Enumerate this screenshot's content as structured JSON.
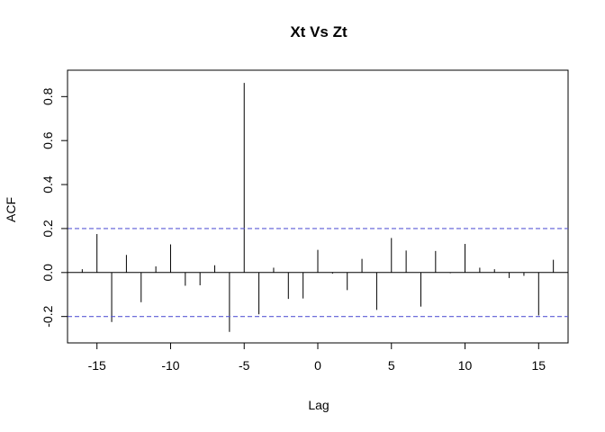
{
  "chart_data": {
    "type": "bar",
    "title": "Xt Vs Zt",
    "xlabel": "Lag",
    "ylabel": "ACF",
    "xlim": [
      -17,
      17
    ],
    "ylim": [
      -0.32,
      0.92
    ],
    "x_ticks": [
      -15,
      -10,
      -5,
      0,
      5,
      10,
      15
    ],
    "x_tick_labels": [
      "-15",
      "-10",
      "-5",
      "0",
      "5",
      "10",
      "15"
    ],
    "y_ticks": [
      -0.2,
      0.0,
      0.2,
      0.4,
      0.6,
      0.8
    ],
    "y_tick_labels": [
      "-0.2",
      "0.0",
      "0.2",
      "0.4",
      "0.6",
      "0.8"
    ],
    "confidence_bounds": [
      0.2,
      -0.2
    ],
    "confidence_color": "#5b5bd6",
    "bar_color": "#000000",
    "grid": false,
    "lags": [
      -16,
      -15,
      -14,
      -13,
      -12,
      -11,
      -10,
      -9,
      -8,
      -7,
      -6,
      -5,
      -4,
      -3,
      -2,
      -1,
      0,
      1,
      2,
      3,
      4,
      5,
      6,
      7,
      8,
      9,
      10,
      11,
      12,
      13,
      14,
      15,
      16
    ],
    "acf": [
      0.015,
      0.175,
      -0.225,
      0.08,
      -0.135,
      0.028,
      0.128,
      -0.06,
      -0.058,
      0.033,
      -0.27,
      0.862,
      -0.19,
      0.022,
      -0.12,
      -0.118,
      0.103,
      -0.005,
      -0.08,
      0.062,
      -0.17,
      0.157,
      0.1,
      -0.155,
      0.098,
      -0.003,
      0.13,
      0.022,
      0.015,
      -0.025,
      -0.015,
      -0.195,
      0.058
    ]
  }
}
